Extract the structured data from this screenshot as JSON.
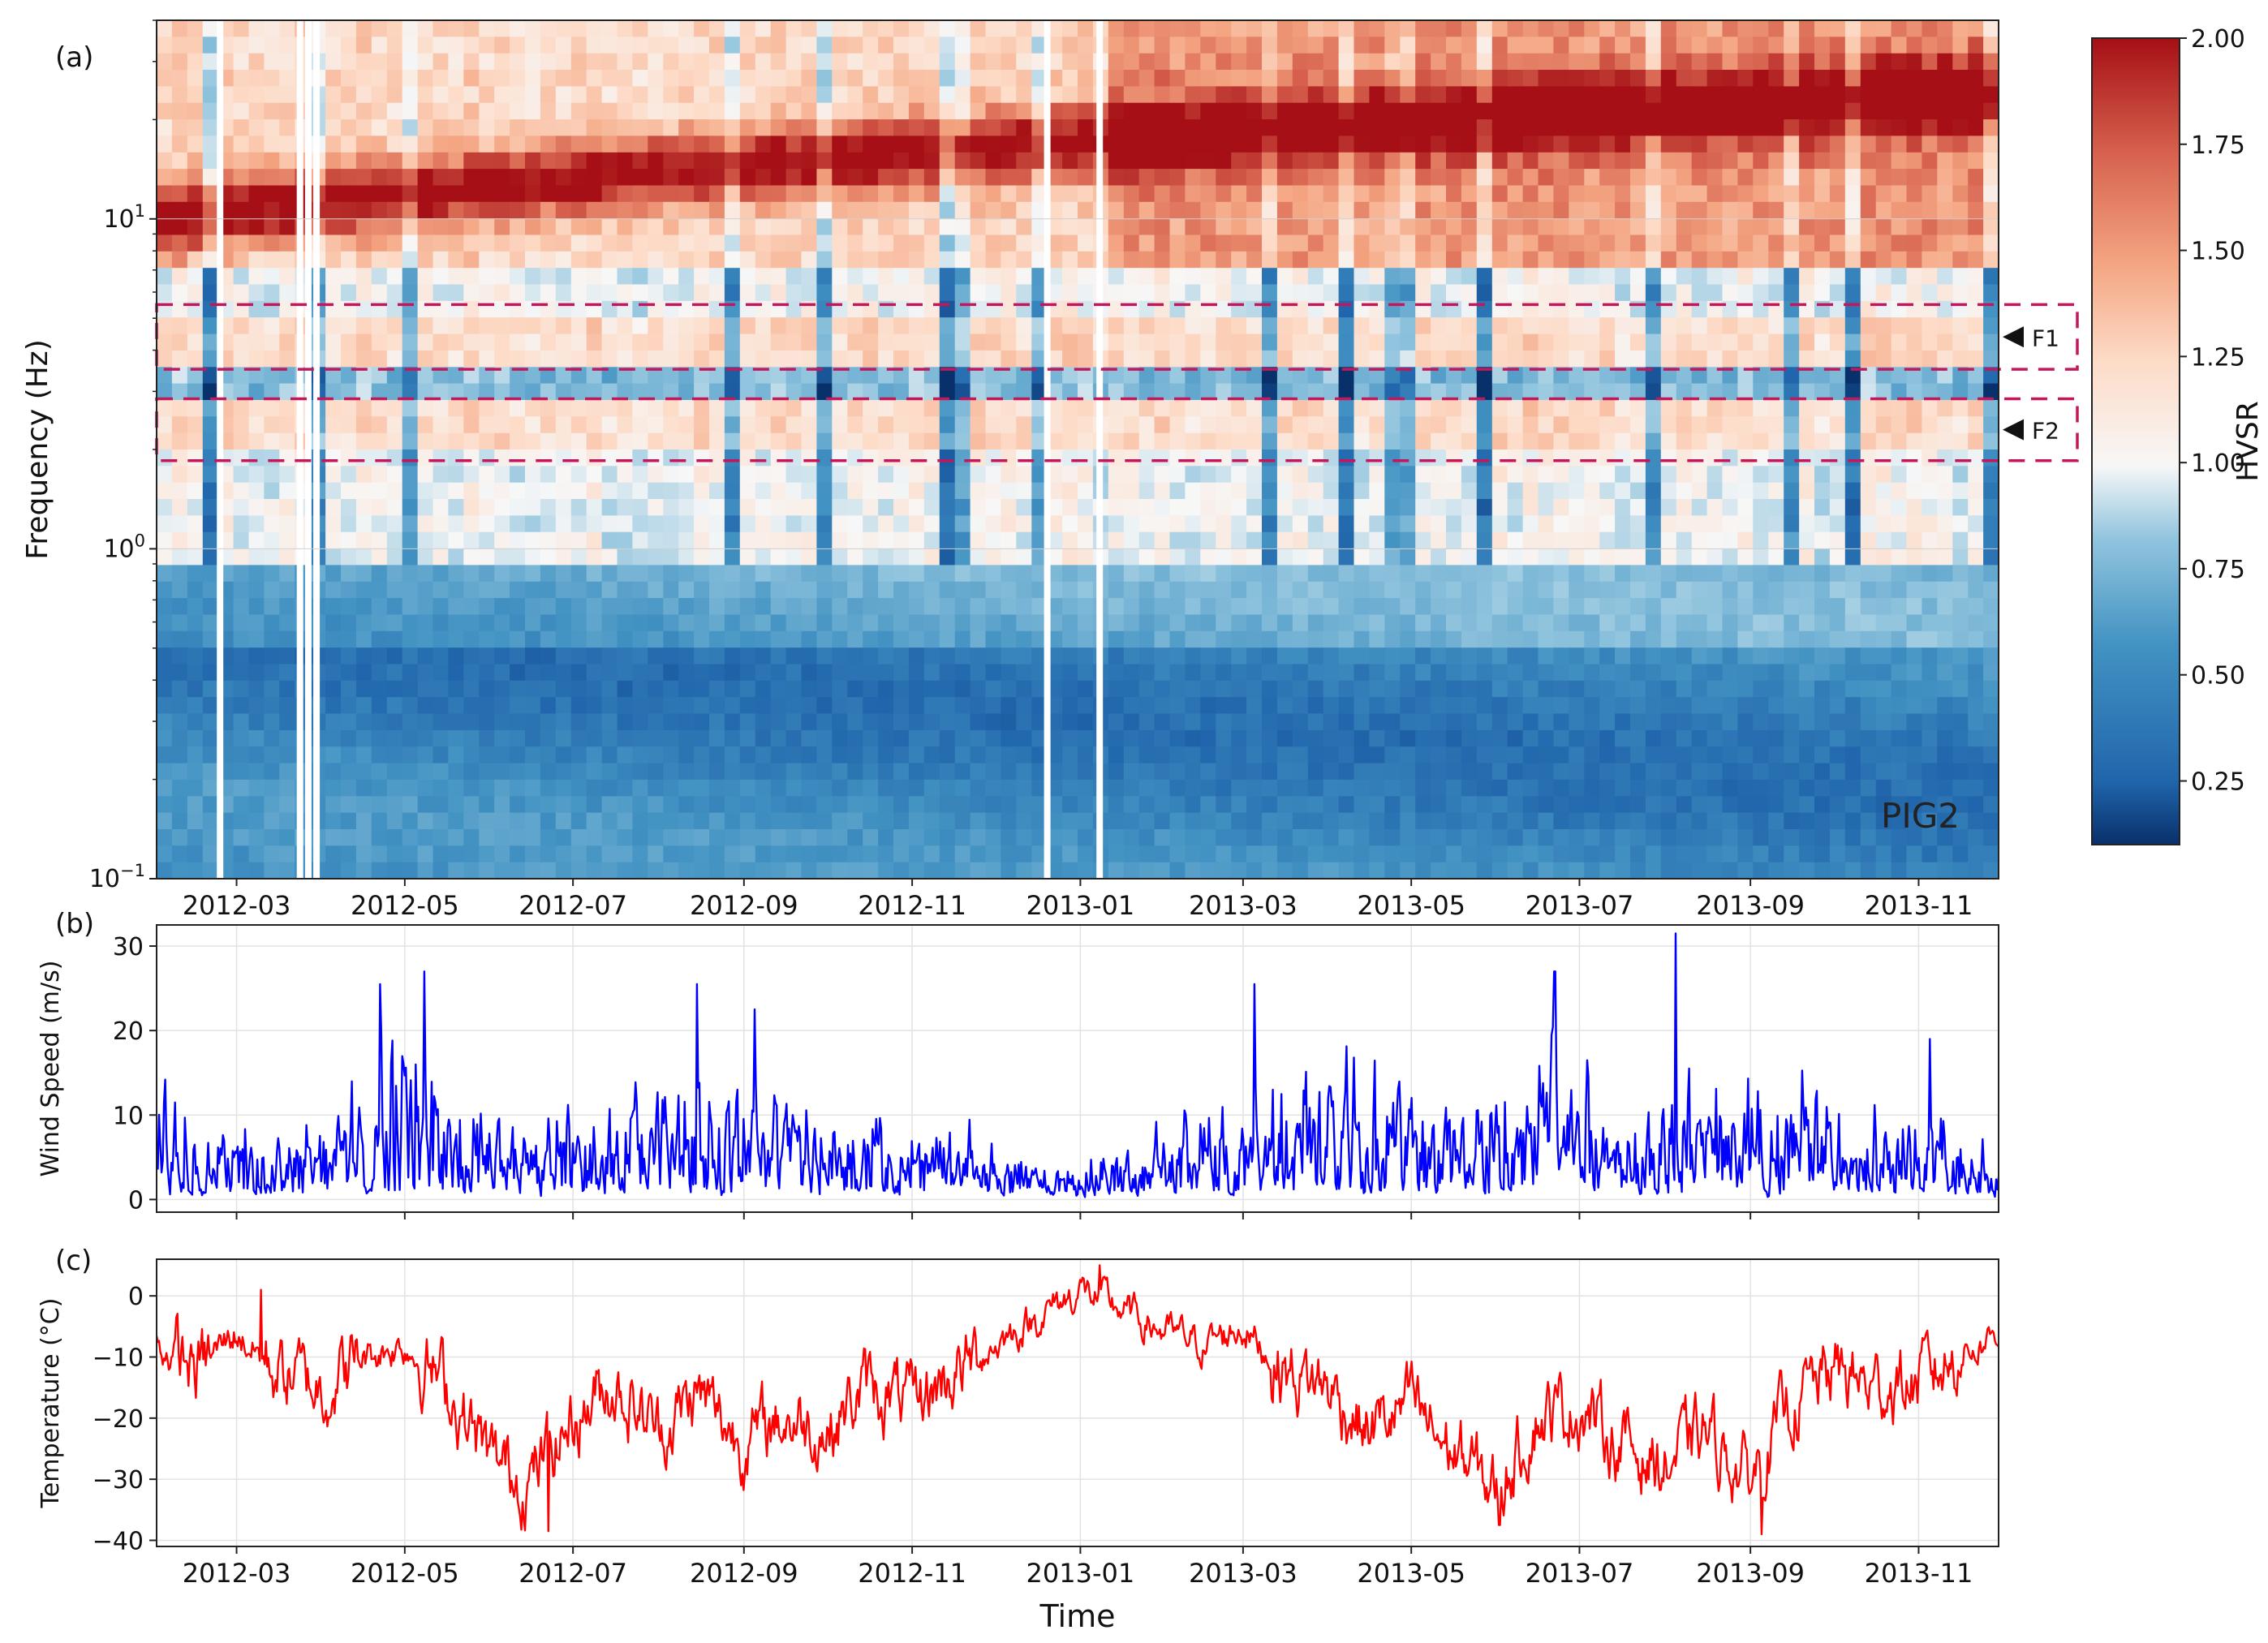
{
  "figure": {
    "panel_a_label": "(a)",
    "panel_b_label": "(b)",
    "panel_c_label": "(c)",
    "x_axis_label": "Time",
    "station_label": "PIG2",
    "colorbar_label": "HVSR",
    "colorbar_ticks": [
      "0.25",
      "0.50",
      "0.75",
      "1.00",
      "1.25",
      "1.50",
      "1.75",
      "2.00"
    ],
    "band_labels": [
      "F1",
      "F2"
    ],
    "band_color": "#c2185b",
    "colormap": "RdBu_r",
    "low_color": "#08519c",
    "high_color": "#a50f15"
  },
  "chart_data": [
    {
      "type": "heatmap",
      "title": "",
      "xlabel": "",
      "ylabel": "Frequency (Hz)",
      "x_range": [
        "2012-02-01",
        "2013-11-30"
      ],
      "x_ticks": [
        "2012-03",
        "2012-05",
        "2012-07",
        "2012-09",
        "2012-11",
        "2013-01",
        "2013-03",
        "2013-05",
        "2013-07",
        "2013-09",
        "2013-11"
      ],
      "y_scale": "log",
      "y_range": [
        0.1,
        40
      ],
      "y_ticks": [
        {
          "value": 0.1,
          "base": "10",
          "exp": "−1"
        },
        {
          "value": 1,
          "base": "10",
          "exp": "0"
        },
        {
          "value": 10,
          "base": "10",
          "exp": "1"
        }
      ],
      "value_range": [
        0.1,
        2.0
      ],
      "bands": [
        {
          "name": "F1",
          "f_low": 3.5,
          "f_high": 5.5
        },
        {
          "name": "F2",
          "f_low": 1.85,
          "f_high": 2.85
        }
      ],
      "gap_dates": [
        "2012-02-24",
        "2012-03-24",
        "2012-03-27",
        "2012-03-30",
        "2012-12-20",
        "2013-01-08"
      ],
      "annotation": "PIG2"
    },
    {
      "type": "line",
      "title": "",
      "xlabel": "",
      "ylabel": "Wind Speed (m/s)",
      "x_range": [
        "2012-02-01",
        "2013-11-30"
      ],
      "y_range": [
        -1.5,
        32.5
      ],
      "y_ticks": [
        0,
        10,
        20,
        30
      ],
      "color": "#0000ff",
      "x": [
        "2012-02-01",
        "2012-02-10",
        "2012-02-20",
        "2012-03-01",
        "2012-03-15",
        "2012-04-01",
        "2012-04-15",
        "2012-04-25",
        "2012-05-05",
        "2012-05-20",
        "2012-06-05",
        "2012-06-20",
        "2012-07-05",
        "2012-07-20",
        "2012-08-05",
        "2012-08-20",
        "2012-09-05",
        "2012-09-20",
        "2012-10-05",
        "2012-10-20",
        "2012-11-05",
        "2012-11-20",
        "2012-12-05",
        "2012-12-20",
        "2013-01-05",
        "2013-01-20",
        "2013-02-05",
        "2013-02-20",
        "2013-03-05",
        "2013-03-20",
        "2013-04-05",
        "2013-04-20",
        "2013-05-05",
        "2013-05-20",
        "2013-06-05",
        "2013-06-20",
        "2013-07-05",
        "2013-07-20",
        "2013-08-05",
        "2013-08-20",
        "2013-09-05",
        "2013-09-20",
        "2013-10-05",
        "2013-10-20",
        "2013-11-05",
        "2013-11-20",
        "2013-11-30"
      ],
      "values": [
        9,
        12,
        6,
        8,
        7,
        9,
        10,
        13,
        15,
        11,
        9,
        8,
        10,
        8,
        11,
        12,
        9,
        10,
        7,
        8,
        6,
        7,
        4,
        3,
        4,
        5,
        8,
        10,
        9,
        13,
        12,
        11,
        10,
        9,
        12,
        14,
        11,
        10,
        13,
        11,
        10,
        12,
        9,
        8,
        7,
        6,
        4
      ],
      "peaks": [
        {
          "x": "2012-04-22",
          "y": 25.5
        },
        {
          "x": "2012-05-08",
          "y": 27
        },
        {
          "x": "2012-08-15",
          "y": 25.5
        },
        {
          "x": "2012-09-05",
          "y": 22.5
        },
        {
          "x": "2013-03-05",
          "y": 25.5
        },
        {
          "x": "2013-06-22",
          "y": 27
        },
        {
          "x": "2013-08-05",
          "y": 31.5
        },
        {
          "x": "2013-11-05",
          "y": 19
        }
      ]
    },
    {
      "type": "line",
      "title": "",
      "xlabel": "Time",
      "ylabel": "Temperature (°C)",
      "x_range": [
        "2012-02-01",
        "2013-11-30"
      ],
      "y_range": [
        -41,
        6
      ],
      "y_ticks": [
        -40,
        -30,
        -20,
        -10,
        0
      ],
      "color": "#ff0000",
      "x": [
        "2012-02-01",
        "2012-02-15",
        "2012-03-01",
        "2012-03-15",
        "2012-04-01",
        "2012-04-15",
        "2012-05-01",
        "2012-05-15",
        "2012-06-01",
        "2012-06-15",
        "2012-07-01",
        "2012-07-15",
        "2012-08-01",
        "2012-08-15",
        "2012-09-01",
        "2012-09-15",
        "2012-10-01",
        "2012-10-15",
        "2012-11-01",
        "2012-11-15",
        "2012-12-01",
        "2012-12-15",
        "2013-01-01",
        "2013-01-15",
        "2013-02-01",
        "2013-02-15",
        "2013-03-01",
        "2013-03-15",
        "2013-04-01",
        "2013-04-15",
        "2013-05-01",
        "2013-05-15",
        "2013-06-01",
        "2013-06-15",
        "2013-07-01",
        "2013-07-15",
        "2013-08-01",
        "2013-08-15",
        "2013-09-01",
        "2013-09-15",
        "2013-10-01",
        "2013-10-15",
        "2013-11-01",
        "2013-11-15",
        "2013-11-30"
      ],
      "values": [
        -8,
        -12,
        -6,
        -12,
        -15,
        -10,
        -8,
        -14,
        -27,
        -30,
        -20,
        -14,
        -22,
        -16,
        -24,
        -20,
        -22,
        -15,
        -18,
        -13,
        -8,
        -4,
        1,
        -2,
        -6,
        -8,
        -5,
        -12,
        -15,
        -22,
        -18,
        -25,
        -32,
        -20,
        -18,
        -24,
        -28,
        -22,
        -30,
        -18,
        -12,
        -15,
        -14,
        -10,
        -6
      ],
      "extremes": [
        {
          "x": "2012-03-10",
          "y": 1
        },
        {
          "x": "2012-06-22",
          "y": -38.5
        },
        {
          "x": "2013-01-08",
          "y": 5
        },
        {
          "x": "2013-06-02",
          "y": -37.5
        },
        {
          "x": "2013-09-05",
          "y": -39
        }
      ]
    }
  ]
}
